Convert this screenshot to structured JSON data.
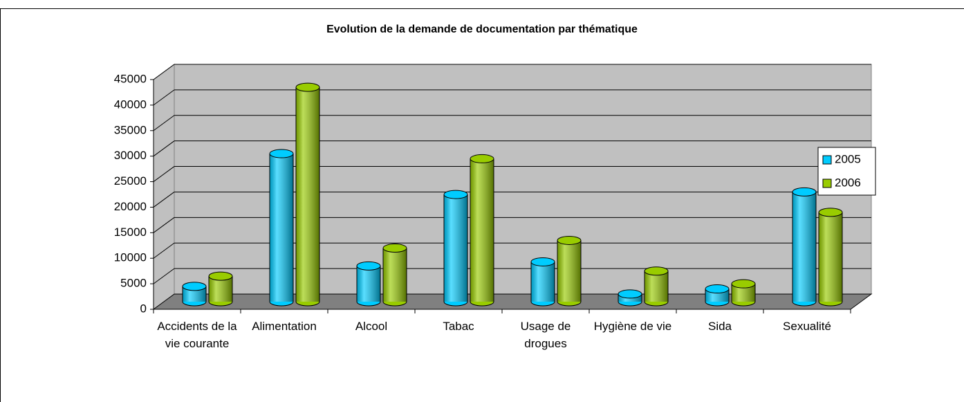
{
  "chart_data": {
    "type": "bar3d",
    "title": "Evolution de la demande de documentation par thématique",
    "categories": [
      "Accidents de la vie courante",
      "Alimentation",
      "Alcool",
      "Tabac",
      "Usage de drogues",
      "Hygiène de vie",
      "Sida",
      "Sexualité"
    ],
    "series": [
      {
        "name": "2005",
        "color": "#00ccff",
        "values": [
          3000,
          29000,
          7000,
          21000,
          7800,
          1500,
          2500,
          21500
        ]
      },
      {
        "name": "2006",
        "color": "#99cc00",
        "values": [
          5000,
          42000,
          10500,
          28000,
          12000,
          6000,
          3500,
          17500
        ]
      }
    ],
    "ylim": [
      0,
      45000
    ],
    "yticks": [
      0,
      5000,
      10000,
      15000,
      20000,
      25000,
      30000,
      35000,
      40000,
      45000
    ],
    "grid": true,
    "legend": "right"
  }
}
